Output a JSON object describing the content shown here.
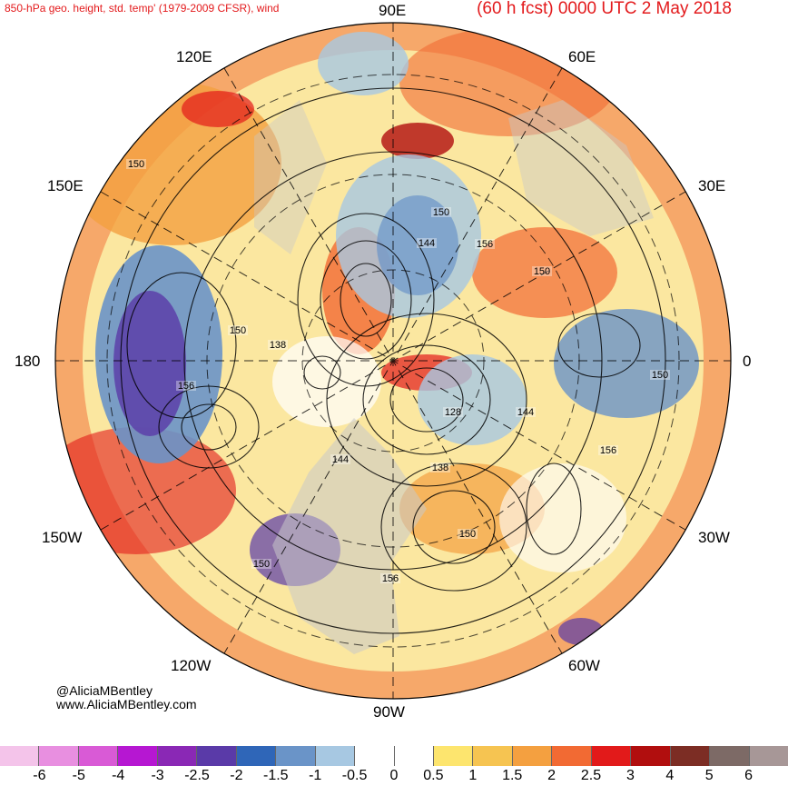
{
  "header": {
    "left": "850-hPa geo. height, std. temp' (1979-2009 CFSR), wind",
    "right": "(60 h fcst) 0000 UTC 2 May 2018",
    "color": "#e31a1c"
  },
  "longitude_labels": {
    "n": "90E",
    "ne": "60E",
    "ene": "30E",
    "e": "0",
    "ese": "30W",
    "se": "60W",
    "s": "90W",
    "sw": "120W",
    "wsw": "150W",
    "w": "180",
    "wnw": "150E",
    "nw": "120E"
  },
  "contour_labels": [
    "150",
    "150",
    "144",
    "156",
    "150",
    "138",
    "150",
    "156",
    "128",
    "144",
    "144",
    "138",
    "150",
    "156",
    "150",
    "150",
    "156"
  ],
  "credit": {
    "handle": "@AliciaMBentley",
    "site": "www.AliciaMBentley.com"
  },
  "legend": {
    "colors": [
      "#f4c4ea",
      "#e88fe0",
      "#d95ad6",
      "#b617d2",
      "#8a28b5",
      "#5a3aa8",
      "#2f66b8",
      "#6a94c8",
      "#a7c8e2",
      "#ffffff",
      "#ffffff",
      "#fde56e",
      "#f6c451",
      "#f4a040",
      "#f26a33",
      "#e21a1a",
      "#b10e0e",
      "#7c2d24",
      "#7d6a66",
      "#a79797"
    ],
    "ticks": [
      "-6",
      "-5",
      "-4",
      "-3",
      "-2.5",
      "-2",
      "-1.5",
      "-1",
      "-0.5",
      "0",
      "0.5",
      "1",
      "1.5",
      "2",
      "2.5",
      "3",
      "4",
      "5",
      "6"
    ]
  }
}
